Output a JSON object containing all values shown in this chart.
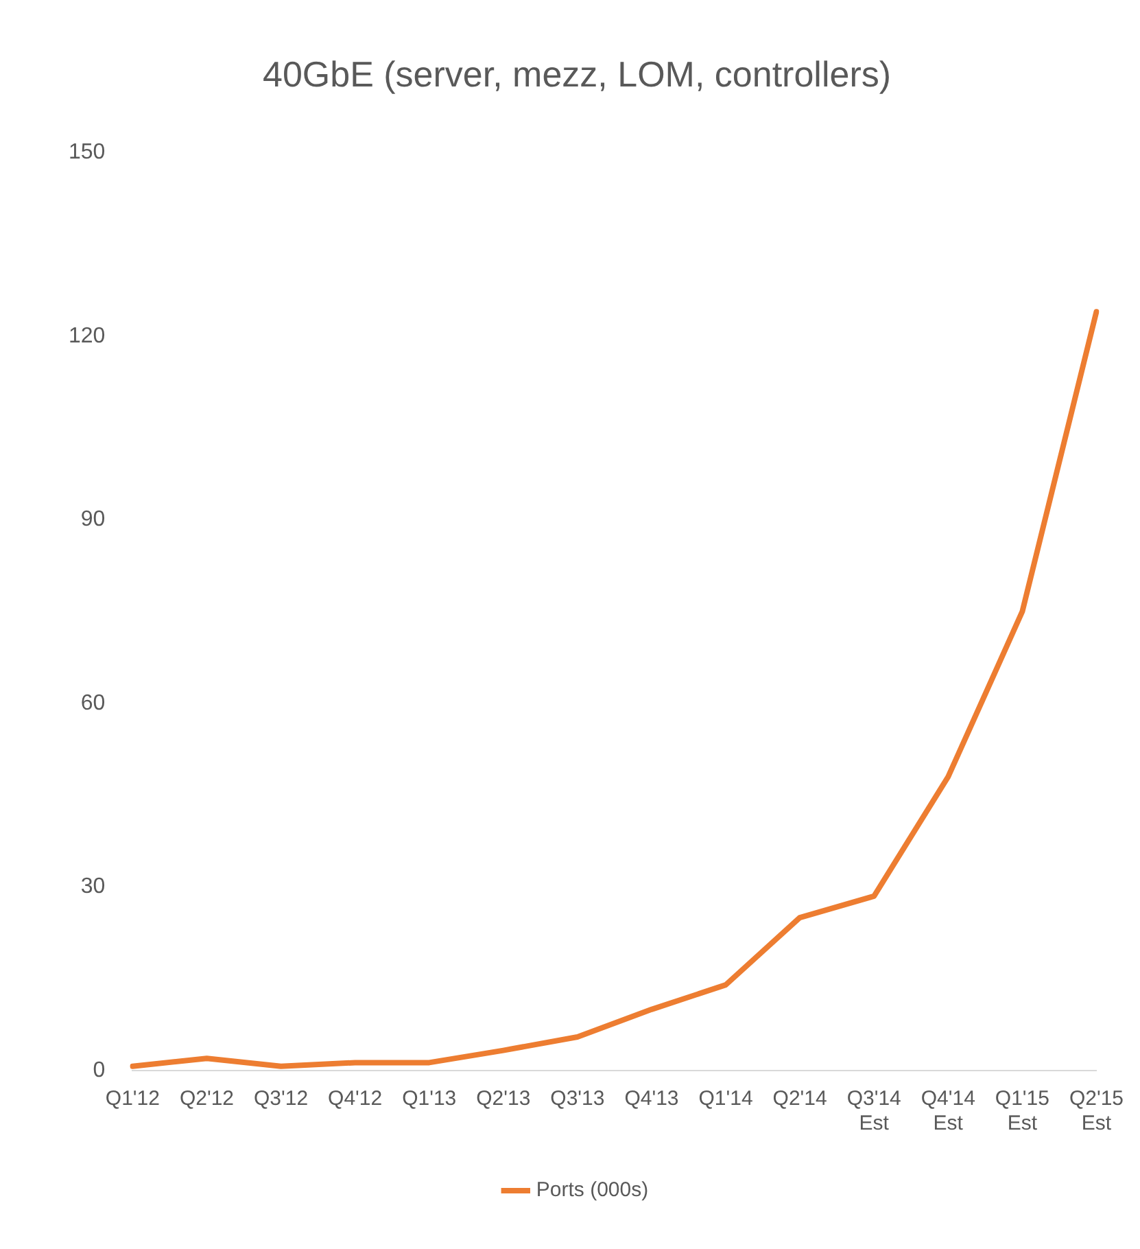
{
  "chart_data": {
    "type": "line",
    "title": "40GbE (server, mezz, LOM, controllers)",
    "categories": [
      "Q1'12",
      "Q2'12",
      "Q3'12",
      "Q4'12",
      "Q1'13",
      "Q2'13",
      "Q3'13",
      "Q4'13",
      "Q1'14",
      "Q2'14",
      "Q3'14\nEst",
      "Q4'14\nEst",
      "Q1'15\nEst",
      "Q2'15\nEst"
    ],
    "series": [
      {
        "name": "Ports (000s)",
        "color": "#ed7d31",
        "values": [
          0.7,
          2,
          0.7,
          1.3,
          1.3,
          3.3,
          5.5,
          10,
          14,
          25,
          28.5,
          48,
          75,
          124
        ]
      }
    ],
    "ylim": [
      0,
      150
    ],
    "yticks": [
      0,
      30,
      60,
      90,
      120,
      150
    ],
    "grid": false,
    "legend": "bottom",
    "marker": "none",
    "line_style": "solid"
  }
}
